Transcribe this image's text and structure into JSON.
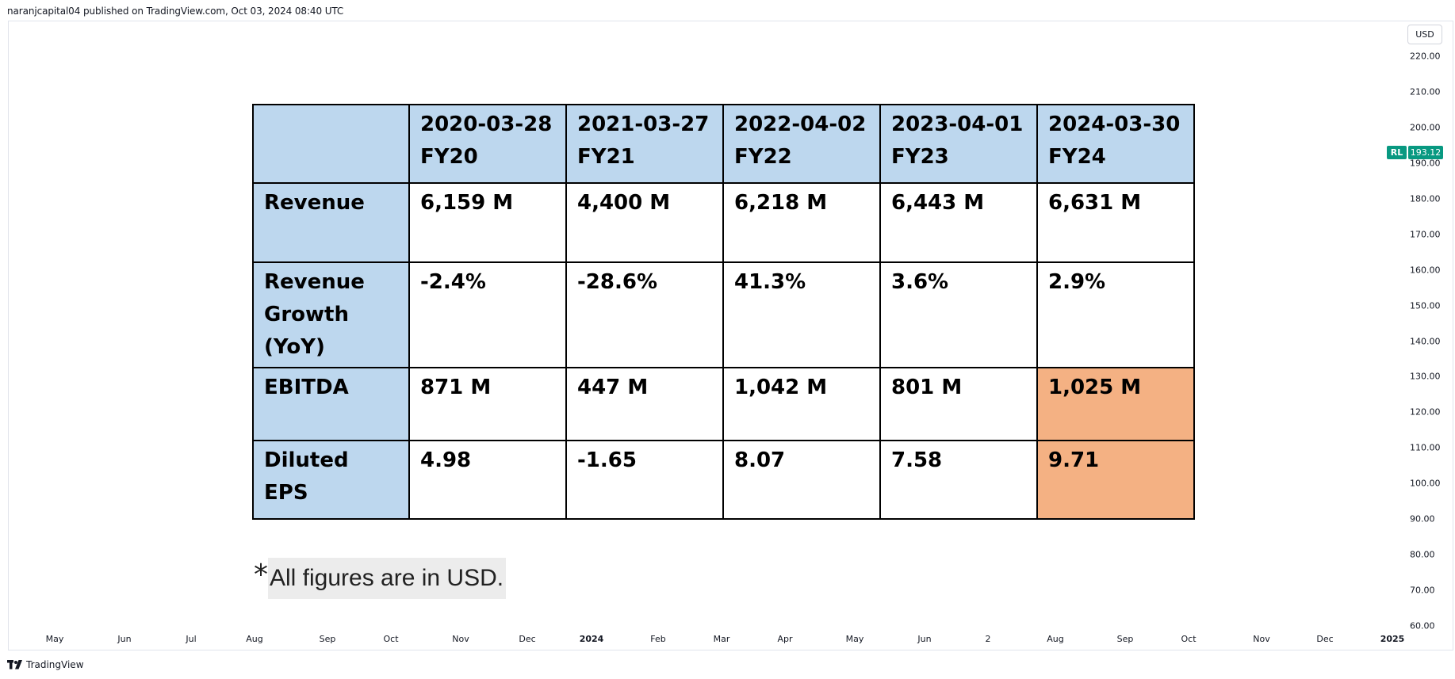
{
  "header": {
    "published": "naranjcapital04 published on TradingView.com, Oct 03, 2024 08:40 UTC"
  },
  "price_axis": {
    "currency": "USD",
    "labels": [
      "220.00",
      "210.00",
      "200.00",
      "190.00",
      "180.00",
      "170.00",
      "160.00",
      "150.00",
      "140.00",
      "130.00",
      "120.00",
      "110.00",
      "100.00",
      "90.00",
      "80.00",
      "70.00",
      "60.00"
    ],
    "symbol_tag": "RL",
    "last_price": "193.12",
    "last_price_color": "#089981"
  },
  "time_axis": {
    "labels": [
      "May",
      "Jun",
      "Jul",
      "Aug",
      "Sep",
      "Oct",
      "Nov",
      "Dec",
      "2024",
      "Feb",
      "Mar",
      "Apr",
      "May",
      "Jun",
      "2",
      "Aug",
      "Sep",
      "Oct",
      "Nov",
      "Dec",
      "2025"
    ]
  },
  "table": {
    "header_color": "#bdd7ee",
    "highlight_color": "#f4b183",
    "columns": [
      {
        "date": "2020-03-28",
        "fy": "FY20"
      },
      {
        "date": "2021-03-27",
        "fy": "FY21"
      },
      {
        "date": "2022-04-02",
        "fy": "FY22"
      },
      {
        "date": "2023-04-01",
        "fy": "FY23"
      },
      {
        "date": "2024-03-30",
        "fy": "FY24"
      }
    ],
    "rows": [
      {
        "label": "Revenue",
        "values": [
          "6,159 M",
          "4,400 M",
          "6,218 M",
          "6,443 M",
          "6,631 M"
        ]
      },
      {
        "label": "Revenue Growth (YoY)",
        "values": [
          "-2.4%",
          "-28.6%",
          "41.3%",
          "3.6%",
          "2.9%"
        ]
      },
      {
        "label": "EBITDA",
        "values": [
          "871 M",
          "447 M",
          "1,042 M",
          "801 M",
          "1,025 M"
        ]
      },
      {
        "label": "Diluted EPS",
        "values": [
          "4.98",
          "-1.65",
          "8.07",
          "7.58",
          "9.71"
        ]
      }
    ]
  },
  "footnote": {
    "star": "*",
    "text": "All figures are in USD."
  },
  "footer": {
    "brand": "TradingView"
  }
}
